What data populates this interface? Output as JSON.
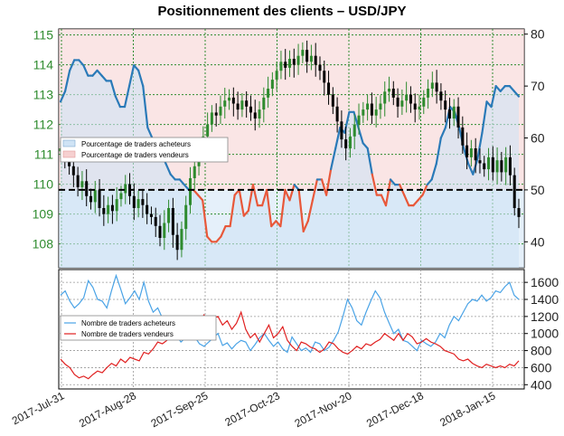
{
  "title": "Positionnement des clients – USD/JPY",
  "colors": {
    "long_fill": "#cfe3f5",
    "short_fill": "#f6d0d0",
    "line_blue": "#2a7ab8",
    "line_red": "#e8583a",
    "candle_up": "#2e8b2e",
    "candle_down": "#000000",
    "grid": "#2e8b2e",
    "buyers_line": "#4aa3e6",
    "sellers_line": "#e02020"
  },
  "chart_data": [
    {
      "type": "line",
      "subtype": "candlestick + sentiment",
      "title": "Positionnement des clients – USD/JPY",
      "x_ticks": [
        "2017-Jul-31",
        "2017-Aug-28",
        "2017-Sep-25",
        "2017-Oct-23",
        "2017-Nov-20",
        "2017-Dec-18",
        "2018-Jan-15"
      ],
      "y_left_ticks": [
        "115",
        "114",
        "113",
        "112",
        "111",
        "110",
        "109",
        "108"
      ],
      "y_right_ticks": [
        "80",
        "70",
        "60",
        "50",
        "40"
      ],
      "ylim_price": [
        107.2,
        115.2
      ],
      "ylim_percent": [
        35,
        81
      ],
      "threshold": 50,
      "legend": [
        {
          "label": "Pourcentage de traders acheteurs",
          "key": "long"
        },
        {
          "label": "Pourcentage de traders vendeurs",
          "key": "short"
        }
      ],
      "price_close": [
        111.2,
        110.9,
        110.6,
        110.3,
        109.9,
        110.1,
        109.6,
        109.4,
        109.8,
        109.2,
        109.0,
        109.3,
        109.1,
        109.5,
        109.7,
        110.0,
        109.6,
        109.2,
        109.5,
        109.3,
        109.0,
        108.9,
        108.6,
        108.2,
        108.7,
        109.2,
        108.3,
        107.8,
        108.5,
        109.3,
        110.2,
        110.6,
        111.2,
        111.6,
        112.0,
        112.4,
        112.3,
        112.6,
        112.8,
        112.9,
        112.7,
        112.5,
        112.8,
        112.6,
        112.4,
        112.2,
        112.5,
        112.9,
        113.2,
        113.5,
        113.8,
        114.1,
        113.9,
        114.2,
        114.0,
        114.3,
        114.5,
        114.1,
        114.3,
        114.0,
        113.8,
        113.4,
        113.0,
        112.6,
        112.1,
        111.5,
        111.2,
        111.6,
        112.0,
        112.3,
        112.5,
        112.7,
        112.3,
        112.5,
        112.7,
        113.1,
        113.2,
        112.9,
        112.6,
        112.8,
        113.0,
        112.7,
        112.5,
        112.6,
        112.9,
        113.2,
        113.4,
        113.1,
        112.8,
        112.5,
        112.2,
        112.6,
        111.9,
        111.3,
        110.9,
        111.2,
        110.8,
        110.7,
        110.5,
        110.9,
        110.4,
        110.8,
        110.4,
        110.9,
        110.3,
        109.2,
        108.9
      ],
      "long_percent": [
        67,
        69,
        73,
        75,
        75,
        74,
        72,
        72,
        73,
        72,
        71,
        71,
        68,
        66,
        66,
        70,
        74,
        73,
        70,
        62,
        60,
        59,
        57,
        55,
        53,
        52,
        52,
        51,
        50,
        50,
        49,
        48,
        41,
        40,
        40,
        41,
        43,
        43,
        49,
        50,
        45,
        46,
        51,
        47,
        47,
        50,
        43,
        44,
        43,
        50,
        48,
        51,
        50,
        42,
        44,
        48,
        52,
        52,
        49,
        54,
        58,
        62,
        61,
        65,
        65,
        62,
        59,
        58,
        53,
        49,
        49,
        47,
        52,
        51,
        51,
        49,
        47,
        47,
        48,
        49,
        51,
        52,
        55,
        60,
        62,
        66,
        65,
        62,
        58,
        55,
        53,
        56,
        61,
        67,
        66,
        70,
        69,
        70,
        70,
        69,
        68
      ],
      "long_percent_x_end": "2018-Jan-22",
      "buyers_ticks": [
        "1600",
        "1400",
        "1200",
        "1000",
        "800",
        "600",
        "400"
      ],
      "ylim_counts": [
        350,
        1750
      ],
      "legend_counts": [
        {
          "label": "Nombre de traders acheteurs",
          "key": "buyers"
        },
        {
          "label": "Nombre de traders vendeurs",
          "key": "sellers"
        }
      ],
      "series": [
        {
          "name": "Nombre de traders acheteurs",
          "values": [
            1450,
            1500,
            1380,
            1300,
            1350,
            1420,
            1620,
            1540,
            1400,
            1380,
            1300,
            1500,
            1680,
            1520,
            1350,
            1420,
            1500,
            1400,
            1600,
            1380,
            1250,
            1300,
            1180,
            1050,
            1000,
            980,
            900,
            950,
            1020,
            960,
            880,
            850,
            900,
            950,
            1000,
            860,
            890,
            820,
            880,
            920,
            900,
            800,
            870,
            950,
            1000,
            920,
            850,
            900,
            820,
            780,
            960,
            880,
            800,
            830,
            780,
            900,
            880,
            800,
            840,
            920,
            1020,
            1200,
            1400,
            1300,
            1150,
            1100,
            1250,
            1380,
            1500,
            1420,
            1250,
            1120,
            1000,
            1050,
            920,
            900,
            850,
            800,
            920,
            880,
            850,
            900,
            1000,
            950,
            1100,
            1200,
            1150,
            1250,
            1350,
            1400,
            1380,
            1450,
            1380,
            1420,
            1500,
            1480,
            1550,
            1600,
            1450,
            1400
          ]
        },
        {
          "name": "Nombre de traders vendeurs",
          "values": [
            700,
            640,
            600,
            520,
            480,
            500,
            470,
            520,
            560,
            540,
            600,
            650,
            620,
            700,
            660,
            720,
            700,
            680,
            780,
            760,
            820,
            900,
            880,
            920,
            1000,
            1060,
            1020,
            1180,
            1100,
            1200,
            1150,
            1220,
            1100,
            1180,
            1200,
            1100,
            1150,
            1050,
            1120,
            1250,
            1050,
            950,
            1000,
            900,
            1000,
            1100,
            950,
            1000,
            1080,
            920,
            850,
            800,
            900,
            880,
            840,
            820,
            780,
            820,
            900,
            880,
            820,
            780,
            760,
            800,
            850,
            820,
            880,
            860,
            900,
            930,
            1000,
            960,
            920,
            1000,
            920,
            1000,
            960,
            880,
            900,
            940,
            900,
            880,
            850,
            800,
            780,
            760,
            700,
            680,
            700,
            650,
            620,
            600,
            640,
            620,
            600,
            620,
            600,
            640,
            620,
            680
          ]
        }
      ]
    }
  ]
}
